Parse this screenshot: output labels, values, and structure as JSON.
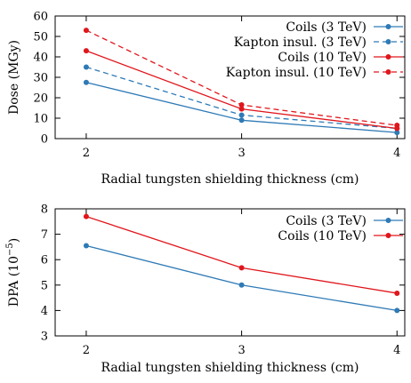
{
  "chart_data": [
    {
      "type": "line",
      "xlabel": "Radial tungsten shielding thickness (cm)",
      "ylabel": "Dose (MGy)",
      "x": [
        2,
        3,
        4
      ],
      "xticks": [
        "2",
        "3",
        "4"
      ],
      "xlim": [
        1.8,
        4.05
      ],
      "ylim": [
        0,
        60
      ],
      "yticks": [
        "0",
        "10",
        "20",
        "30",
        "40",
        "50",
        "60"
      ],
      "legend_position": "top-right",
      "grid": false,
      "series": [
        {
          "name": "Coils (3 TeV)",
          "values": [
            27.5,
            9,
            3
          ],
          "color": "#2e7ab6",
          "dash": "solid"
        },
        {
          "name": "Kapton insul. (3 TeV)",
          "values": [
            35,
            11.5,
            5
          ],
          "color": "#2e7ab6",
          "dash": "dashed"
        },
        {
          "name": "Coils (10 TeV)",
          "values": [
            43,
            14.5,
            5
          ],
          "color": "#e0161c",
          "dash": "solid"
        },
        {
          "name": "Kapton insul. (10 TeV)",
          "values": [
            53,
            16.5,
            6.5
          ],
          "color": "#e0161c",
          "dash": "dashed"
        }
      ]
    },
    {
      "type": "line",
      "xlabel": "Radial tungsten shielding thickness (cm)",
      "ylabel": "DPA (10",
      "ylabel_sup": "−5",
      "ylabel_end": ")",
      "x": [
        2,
        3,
        4
      ],
      "xticks": [
        "2",
        "3",
        "4"
      ],
      "xlim": [
        1.8,
        4.05
      ],
      "ylim": [
        3,
        8
      ],
      "yticks": [
        "3",
        "4",
        "5",
        "6",
        "7",
        "8"
      ],
      "legend_position": "top-right",
      "grid": false,
      "series": [
        {
          "name": "Coils (3 TeV)",
          "values": [
            6.55,
            5.0,
            4.0
          ],
          "color": "#2e7ab6",
          "dash": "solid"
        },
        {
          "name": "Coils (10 TeV)",
          "values": [
            7.7,
            5.68,
            4.68
          ],
          "color": "#e0161c",
          "dash": "solid"
        }
      ]
    }
  ]
}
